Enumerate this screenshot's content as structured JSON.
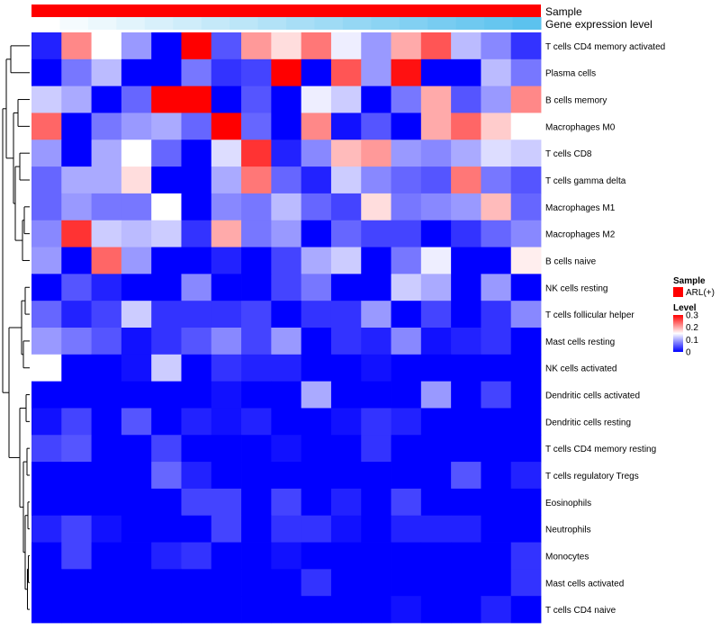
{
  "chart_data": {
    "type": "heatmap",
    "annotations": {
      "sample_label": "Sample",
      "expression_label": "Gene expression level",
      "sample_color": "#ff0000",
      "expression_colors": [
        "#ffffff",
        "#f5fbfe",
        "#ecf8fd",
        "#e2f4fc",
        "#d8f0fb",
        "#cfedfa",
        "#c5e9f9",
        "#bce6f8",
        "#b2e2f7",
        "#a8def6",
        "#9fdbf5",
        "#95d7f4",
        "#8cd4f3",
        "#82d0f2",
        "#78ccf1",
        "#6fc9f0",
        "#66c6ef",
        "#5cc2ee"
      ]
    },
    "row_labels": [
      "T cells CD4 memory activated",
      "Plasma cells",
      "B cells memory",
      "Macrophages M0",
      "T cells CD8",
      "T cells gamma delta",
      "Macrophages M1",
      "Macrophages M2",
      "B cells naive",
      "NK cells resting",
      "T cells follicular helper",
      "Mast cells resting",
      "NK cells activated",
      "Dendritic cells activated",
      "Dendritic cells resting",
      "T cells CD4 memory resting",
      "T cells regulatory  Tregs",
      "Eosinophils",
      "Neutrophils",
      "Monocytes",
      "Mast cells activated",
      "T cells CD4 naive"
    ],
    "values": [
      [
        0.02,
        0.22,
        0.15,
        0.09,
        0.0,
        0.3,
        0.05,
        0.21,
        0.17,
        0.23,
        0.14,
        0.09,
        0.2,
        0.25,
        0.11,
        0.08,
        0.03
      ],
      [
        0.0,
        0.07,
        0.11,
        0.0,
        0.0,
        0.07,
        0.03,
        0.04,
        0.3,
        0.0,
        0.25,
        0.09,
        0.29,
        0.0,
        0.0,
        0.11,
        0.07
      ],
      [
        0.12,
        0.1,
        0.0,
        0.06,
        0.3,
        0.3,
        0.0,
        0.05,
        0.0,
        0.14,
        0.12,
        0.0,
        0.07,
        0.2,
        0.05,
        0.09,
        0.22
      ],
      [
        0.24,
        0.0,
        0.07,
        0.09,
        0.1,
        0.06,
        0.3,
        0.06,
        0.0,
        0.22,
        0.01,
        0.05,
        0.0,
        0.2,
        0.24,
        0.18,
        0.15
      ],
      [
        0.09,
        0.0,
        0.1,
        0.15,
        0.06,
        0.0,
        0.13,
        0.27,
        0.02,
        0.08,
        0.19,
        0.21,
        0.09,
        0.08,
        0.1,
        0.13,
        0.12
      ],
      [
        0.06,
        0.1,
        0.1,
        0.17,
        0.0,
        0.0,
        0.1,
        0.23,
        0.06,
        0.02,
        0.12,
        0.08,
        0.06,
        0.05,
        0.23,
        0.07,
        0.05
      ],
      [
        0.06,
        0.09,
        0.07,
        0.07,
        0.15,
        0.0,
        0.08,
        0.07,
        0.11,
        0.06,
        0.04,
        0.17,
        0.07,
        0.08,
        0.09,
        0.19,
        0.06
      ],
      [
        0.08,
        0.27,
        0.12,
        0.11,
        0.12,
        0.03,
        0.2,
        0.07,
        0.09,
        0.0,
        0.06,
        0.04,
        0.04,
        0.0,
        0.03,
        0.06,
        0.08
      ],
      [
        0.09,
        0.0,
        0.24,
        0.09,
        0.0,
        0.0,
        0.02,
        0.0,
        0.04,
        0.1,
        0.12,
        0.0,
        0.07,
        0.14,
        0.0,
        0.0,
        0.16
      ],
      [
        0.0,
        0.05,
        0.02,
        0.0,
        0.0,
        0.08,
        0.0,
        0.0,
        0.04,
        0.07,
        0.0,
        0.0,
        0.12,
        0.1,
        0.0,
        0.09,
        0.0
      ],
      [
        0.06,
        0.02,
        0.04,
        0.12,
        0.03,
        0.03,
        0.03,
        0.04,
        0.0,
        0.03,
        0.03,
        0.09,
        0.0,
        0.04,
        0.0,
        0.03,
        0.08
      ],
      [
        0.09,
        0.07,
        0.05,
        0.01,
        0.03,
        0.05,
        0.08,
        0.04,
        0.09,
        0.0,
        0.03,
        0.02,
        0.08,
        0.01,
        0.02,
        0.03,
        0.0
      ],
      [
        0.15,
        0.0,
        0.0,
        0.01,
        0.12,
        0.0,
        0.03,
        0.02,
        0.02,
        0.0,
        0.0,
        0.01,
        0.0,
        0.0,
        0.0,
        0.0,
        0.0
      ],
      [
        0.0,
        0.0,
        0.0,
        0.0,
        0.0,
        0.0,
        0.01,
        0.0,
        0.0,
        0.1,
        0.0,
        0.0,
        0.0,
        0.09,
        0.0,
        0.04,
        0.0
      ],
      [
        0.01,
        0.04,
        0.0,
        0.05,
        0.0,
        0.02,
        0.01,
        0.02,
        0.0,
        0.0,
        0.01,
        0.03,
        0.02,
        0.0,
        0.0,
        0.0,
        0.0
      ],
      [
        0.04,
        0.05,
        0.0,
        0.0,
        0.04,
        0.0,
        0.0,
        0.0,
        0.01,
        0.0,
        0.0,
        0.03,
        0.0,
        0.0,
        0.0,
        0.0,
        0.0
      ],
      [
        0.0,
        0.0,
        0.0,
        0.0,
        0.06,
        0.02,
        0.0,
        0.0,
        0.0,
        0.0,
        0.0,
        0.0,
        0.0,
        0.0,
        0.05,
        0.0,
        0.02
      ],
      [
        0.0,
        0.0,
        0.0,
        0.0,
        0.0,
        0.04,
        0.04,
        0.0,
        0.04,
        0.0,
        0.02,
        0.0,
        0.04,
        0.0,
        0.0,
        0.0,
        0.0
      ],
      [
        0.02,
        0.04,
        0.01,
        0.0,
        0.0,
        0.0,
        0.04,
        0.0,
        0.03,
        0.03,
        0.01,
        0.0,
        0.02,
        0.02,
        0.02,
        0.0,
        0.0
      ],
      [
        0.0,
        0.04,
        0.0,
        0.0,
        0.02,
        0.03,
        0.0,
        0.0,
        0.01,
        0.0,
        0.0,
        0.0,
        0.0,
        0.0,
        0.0,
        0.0,
        0.03
      ],
      [
        0.0,
        0.0,
        0.0,
        0.0,
        0.0,
        0.0,
        0.0,
        0.0,
        0.0,
        0.03,
        0.0,
        0.0,
        0.0,
        0.0,
        0.0,
        0.0,
        0.03
      ],
      [
        0.0,
        0.0,
        0.0,
        0.0,
        0.0,
        0.0,
        0.0,
        0.0,
        0.0,
        0.0,
        0.0,
        0.0,
        0.01,
        0.0,
        0.0,
        0.02,
        0.0
      ]
    ],
    "color_scale": {
      "min": 0,
      "mid": 0.15,
      "max": 0.3,
      "low_color": "#0000ff",
      "mid_color": "#ffffff",
      "high_color": "#ff0000"
    },
    "legend": {
      "sample_title": "Sample",
      "sample_entry": "ARL(+)",
      "level_title": "Level",
      "ticks": [
        "0.3",
        "0.2",
        "0.1",
        "0"
      ],
      "tick_values": [
        0.3,
        0.2,
        0.1,
        0
      ]
    },
    "dendrogram": "row clustering tree shown on left"
  }
}
